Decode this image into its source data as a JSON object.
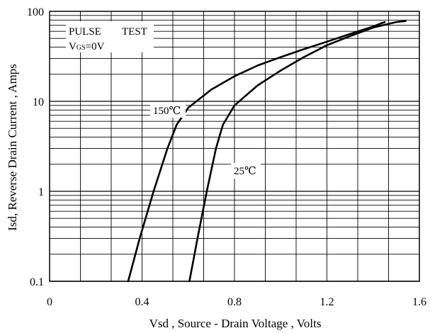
{
  "chart_data": {
    "type": "line",
    "title": "",
    "xlabel": "Vsd , Source - Drain Voltage , Volts",
    "ylabel": "Isd, Reverse Drain Current , Amps",
    "xlim": [
      0,
      1.6
    ],
    "ylim": [
      0.1,
      100
    ],
    "yscale": "log",
    "grid": true,
    "x_ticks": [
      {
        "value": 0,
        "label": "0"
      },
      {
        "value": 0.4,
        "label": "0.4"
      },
      {
        "value": 0.8,
        "label": "0.8"
      },
      {
        "value": 1.2,
        "label": "1.2"
      },
      {
        "value": 1.6,
        "label": "1.6"
      }
    ],
    "y_ticks": [
      {
        "value": 0.1,
        "label": "0.1"
      },
      {
        "value": 1,
        "label": "1"
      },
      {
        "value": 10,
        "label": "10"
      },
      {
        "value": 100,
        "label": "100"
      }
    ],
    "annotations": {
      "pulse_test": {
        "label": "PULSE",
        "label2": "TEST"
      },
      "vgs": {
        "v": "V",
        "sub": "GS",
        "rest": "=0V"
      }
    },
    "series": [
      {
        "name": "150℃",
        "color": "#000000",
        "points": [
          [
            0.34,
            0.1
          ],
          [
            0.39,
            0.3
          ],
          [
            0.45,
            1.0
          ],
          [
            0.51,
            3.0
          ],
          [
            0.55,
            5.5
          ],
          [
            0.6,
            8.5
          ],
          [
            0.7,
            13.5
          ],
          [
            0.8,
            19.0
          ],
          [
            0.9,
            25.0
          ],
          [
            1.0,
            31.0
          ],
          [
            1.1,
            38.0
          ],
          [
            1.2,
            46.0
          ],
          [
            1.3,
            56.0
          ],
          [
            1.4,
            68.0
          ],
          [
            1.45,
            76.0
          ]
        ]
      },
      {
        "name": "25℃",
        "color": "#000000",
        "points": [
          [
            0.605,
            0.1
          ],
          [
            0.64,
            0.3
          ],
          [
            0.68,
            1.0
          ],
          [
            0.72,
            3.0
          ],
          [
            0.75,
            5.5
          ],
          [
            0.8,
            9.0
          ],
          [
            0.9,
            15.0
          ],
          [
            1.0,
            22.0
          ],
          [
            1.1,
            31.0
          ],
          [
            1.2,
            42.0
          ],
          [
            1.3,
            53.0
          ],
          [
            1.4,
            66.0
          ],
          [
            1.5,
            76.0
          ],
          [
            1.54,
            78.0
          ]
        ]
      }
    ]
  }
}
